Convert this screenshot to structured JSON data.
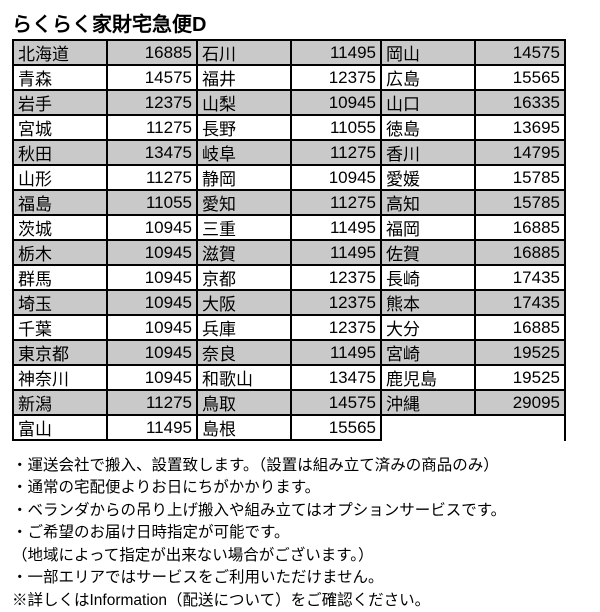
{
  "title": "らくらく家財宅急便D",
  "columns": [
    {
      "rows": [
        {
          "pref": "北海道",
          "price": "16885",
          "shaded": true
        },
        {
          "pref": "青森",
          "price": "14575",
          "shaded": false
        },
        {
          "pref": "岩手",
          "price": "12375",
          "shaded": true
        },
        {
          "pref": "宮城",
          "price": "11275",
          "shaded": false
        },
        {
          "pref": "秋田",
          "price": "13475",
          "shaded": true
        },
        {
          "pref": "山形",
          "price": "11275",
          "shaded": false
        },
        {
          "pref": "福島",
          "price": "11055",
          "shaded": true
        },
        {
          "pref": "茨城",
          "price": "10945",
          "shaded": false
        },
        {
          "pref": "栃木",
          "price": "10945",
          "shaded": true
        },
        {
          "pref": "群馬",
          "price": "10945",
          "shaded": false
        },
        {
          "pref": "埼玉",
          "price": "10945",
          "shaded": true
        },
        {
          "pref": "千葉",
          "price": "10945",
          "shaded": false
        },
        {
          "pref": "東京都",
          "price": "10945",
          "shaded": true
        },
        {
          "pref": "神奈川",
          "price": "10945",
          "shaded": false
        },
        {
          "pref": "新潟",
          "price": "11275",
          "shaded": true
        },
        {
          "pref": "富山",
          "price": "11495",
          "shaded": false
        }
      ]
    },
    {
      "rows": [
        {
          "pref": "石川",
          "price": "11495",
          "shaded": true
        },
        {
          "pref": "福井",
          "price": "12375",
          "shaded": false
        },
        {
          "pref": "山梨",
          "price": "10945",
          "shaded": true
        },
        {
          "pref": "長野",
          "price": "11055",
          "shaded": false
        },
        {
          "pref": "岐阜",
          "price": "11275",
          "shaded": true
        },
        {
          "pref": "静岡",
          "price": "10945",
          "shaded": false
        },
        {
          "pref": "愛知",
          "price": "11275",
          "shaded": true
        },
        {
          "pref": "三重",
          "price": "11495",
          "shaded": false
        },
        {
          "pref": "滋賀",
          "price": "11495",
          "shaded": true
        },
        {
          "pref": "京都",
          "price": "12375",
          "shaded": false
        },
        {
          "pref": "大阪",
          "price": "12375",
          "shaded": true
        },
        {
          "pref": "兵庫",
          "price": "12375",
          "shaded": false
        },
        {
          "pref": "奈良",
          "price": "11495",
          "shaded": true
        },
        {
          "pref": "和歌山",
          "price": "13475",
          "shaded": false
        },
        {
          "pref": "鳥取",
          "price": "14575",
          "shaded": true
        },
        {
          "pref": "島根",
          "price": "15565",
          "shaded": false
        }
      ]
    },
    {
      "rows": [
        {
          "pref": "岡山",
          "price": "14575",
          "shaded": true
        },
        {
          "pref": "広島",
          "price": "15565",
          "shaded": false
        },
        {
          "pref": "山口",
          "price": "16335",
          "shaded": true
        },
        {
          "pref": "徳島",
          "price": "13695",
          "shaded": false
        },
        {
          "pref": "香川",
          "price": "14795",
          "shaded": true
        },
        {
          "pref": "愛媛",
          "price": "15785",
          "shaded": false
        },
        {
          "pref": "高知",
          "price": "15785",
          "shaded": true
        },
        {
          "pref": "福岡",
          "price": "16885",
          "shaded": false
        },
        {
          "pref": "佐賀",
          "price": "16885",
          "shaded": true
        },
        {
          "pref": "長崎",
          "price": "17435",
          "shaded": false
        },
        {
          "pref": "熊本",
          "price": "17435",
          "shaded": true
        },
        {
          "pref": "大分",
          "price": "16885",
          "shaded": false
        },
        {
          "pref": "宮崎",
          "price": "19525",
          "shaded": true
        },
        {
          "pref": "鹿児島",
          "price": "19525",
          "shaded": false
        },
        {
          "pref": "沖縄",
          "price": "29095",
          "shaded": true
        }
      ]
    }
  ],
  "notes": [
    "・運送会社で搬入、設置致します。（設置は組み立て済みの商品のみ）",
    "・通常の宅配便よりお日にちがかかります。",
    "・ベランダからの吊り上げ搬入や組み立てはオプションサービスです。",
    "・ご希望のお届け日時指定が可能です。",
    "（地域によって指定が出来ない場合がございます。）",
    "・一部エリアではサービスをご利用いただけません。",
    "※詳しくはInformation（配送について）をご確認ください。"
  ]
}
